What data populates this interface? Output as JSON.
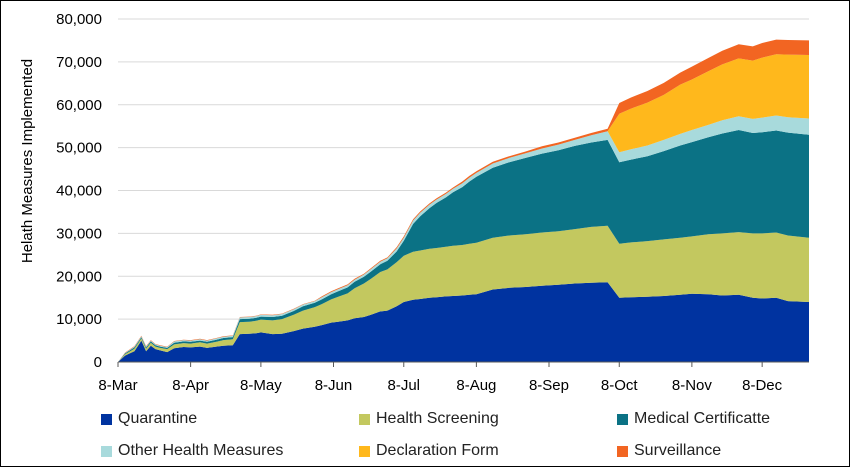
{
  "chart_data": {
    "type": "area",
    "stacked": true,
    "title": "",
    "xlabel": "",
    "ylabel": "Helath Measures Implemented",
    "ylim": [
      0,
      80000
    ],
    "yticks": [
      "0",
      "10,000",
      "20,000",
      "30,000",
      "40,000",
      "50,000",
      "60,000",
      "70,000",
      "80,000"
    ],
    "xticks": [
      "8-Mar",
      "8-Apr",
      "8-May",
      "8-Jun",
      "8-Jul",
      "8-Aug",
      "8-Sep",
      "8-Oct",
      "8-Nov",
      "8-Dec"
    ],
    "xtick_days": [
      0,
      31,
      61,
      92,
      122,
      153,
      184,
      214,
      245,
      275
    ],
    "x_days": [
      0,
      3,
      7,
      10,
      12,
      14,
      16,
      18,
      21,
      24,
      28,
      31,
      35,
      38,
      42,
      45,
      49,
      52,
      56,
      59,
      61,
      66,
      70,
      75,
      79,
      84,
      87,
      91,
      94,
      98,
      101,
      105,
      108,
      112,
      115,
      119,
      122,
      126,
      129,
      133,
      136,
      140,
      143,
      147,
      150,
      153,
      160,
      167,
      174,
      181,
      188,
      195,
      202,
      209,
      214,
      219,
      226,
      233,
      240,
      245,
      252,
      258,
      265,
      271,
      275,
      281,
      286,
      295
    ],
    "grid": "horizontal",
    "legend_position": "bottom",
    "series": [
      {
        "name": "Quarantine",
        "color": "#0033A0",
        "values": [
          0,
          1500,
          2500,
          5000,
          2500,
          3800,
          3000,
          2700,
          2300,
          3200,
          3500,
          3400,
          3600,
          3300,
          3600,
          3800,
          3900,
          6500,
          6600,
          6700,
          6900,
          6500,
          6600,
          7200,
          7800,
          8200,
          8600,
          9200,
          9400,
          9700,
          10200,
          10500,
          11000,
          11800,
          12000,
          13000,
          14000,
          14500,
          14700,
          15000,
          15100,
          15300,
          15400,
          15500,
          15700,
          15800,
          16900,
          17300,
          17500,
          17800,
          18000,
          18300,
          18500,
          18600,
          15000,
          15100,
          15200,
          15400,
          15700,
          15900,
          15800,
          15500,
          15700,
          15000,
          14800,
          15000,
          14200,
          14000
        ]
      },
      {
        "name": "Health Screening",
        "color": "#C3C85F",
        "values": [
          0,
          300,
          600,
          500,
          600,
          700,
          600,
          600,
          700,
          900,
          900,
          900,
          1000,
          1000,
          1100,
          1300,
          1400,
          2800,
          2800,
          2900,
          3000,
          3200,
          3400,
          3800,
          4200,
          4600,
          4900,
          5400,
          5800,
          6300,
          7000,
          7800,
          8400,
          9200,
          9600,
          10300,
          10800,
          11200,
          11300,
          11400,
          11500,
          11600,
          11700,
          11800,
          11900,
          12000,
          12100,
          12200,
          12300,
          12400,
          12500,
          12700,
          13000,
          13200,
          12600,
          12800,
          13000,
          13200,
          13300,
          13400,
          14000,
          14500,
          14600,
          15000,
          15200,
          15200,
          15300,
          15000
        ]
      },
      {
        "name": "Medical Certificatte",
        "color": "#0B7285",
        "values": [
          0,
          200,
          300,
          300,
          300,
          300,
          300,
          300,
          300,
          400,
          400,
          400,
          400,
          400,
          500,
          500,
          500,
          700,
          700,
          700,
          700,
          800,
          800,
          900,
          1000,
          1000,
          1100,
          1200,
          1300,
          1400,
          1500,
          1600,
          1700,
          1800,
          2000,
          2500,
          3500,
          6500,
          8000,
          9500,
          10500,
          11500,
          12500,
          13500,
          14500,
          15400,
          16300,
          17100,
          17800,
          18400,
          18900,
          19400,
          19700,
          20000,
          19000,
          19300,
          19800,
          20600,
          21500,
          22000,
          22600,
          23300,
          23800,
          23400,
          23600,
          23800,
          24000,
          24000
        ]
      },
      {
        "name": "Other Health Measures",
        "color": "#A8DADC",
        "values": [
          0,
          100,
          200,
          200,
          200,
          200,
          200,
          200,
          200,
          300,
          300,
          300,
          300,
          300,
          300,
          300,
          300,
          400,
          400,
          400,
          400,
          400,
          400,
          400,
          400,
          400,
          500,
          500,
          500,
          500,
          500,
          500,
          600,
          600,
          600,
          700,
          700,
          800,
          800,
          800,
          800,
          800,
          800,
          900,
          900,
          900,
          1000,
          1000,
          1100,
          1200,
          1300,
          1400,
          1700,
          2000,
          2300,
          2400,
          2500,
          2600,
          2700,
          2800,
          2900,
          3100,
          3200,
          3300,
          3400,
          3500,
          3600,
          3800
        ]
      },
      {
        "name": "Declaration Form",
        "color": "#FFB81C",
        "values": [
          0,
          0,
          0,
          0,
          0,
          0,
          0,
          0,
          0,
          0,
          0,
          0,
          0,
          0,
          0,
          0,
          0,
          0,
          0,
          0,
          0,
          0,
          0,
          0,
          0,
          0,
          0,
          0,
          0,
          0,
          0,
          0,
          0,
          0,
          0,
          0,
          0,
          0,
          0,
          0,
          0,
          0,
          0,
          0,
          0,
          0,
          0,
          0,
          0,
          0,
          0,
          0,
          0,
          0,
          9000,
          9500,
          10000,
          10500,
          11500,
          11800,
          12500,
          13000,
          13500,
          13600,
          14000,
          14300,
          14600,
          14800
        ]
      },
      {
        "name": "Surveillance",
        "color": "#F26522",
        "values": [
          0,
          100,
          100,
          100,
          100,
          100,
          100,
          100,
          100,
          100,
          100,
          100,
          100,
          100,
          100,
          100,
          100,
          100,
          100,
          100,
          100,
          100,
          100,
          100,
          100,
          100,
          200,
          200,
          200,
          200,
          200,
          200,
          200,
          200,
          200,
          300,
          300,
          300,
          300,
          300,
          300,
          300,
          300,
          400,
          400,
          400,
          400,
          400,
          400,
          500,
          500,
          500,
          500,
          600,
          2500,
          2600,
          2700,
          2800,
          2800,
          3000,
          3100,
          3200,
          3300,
          3300,
          3400,
          3400,
          3400,
          3400
        ]
      }
    ]
  }
}
